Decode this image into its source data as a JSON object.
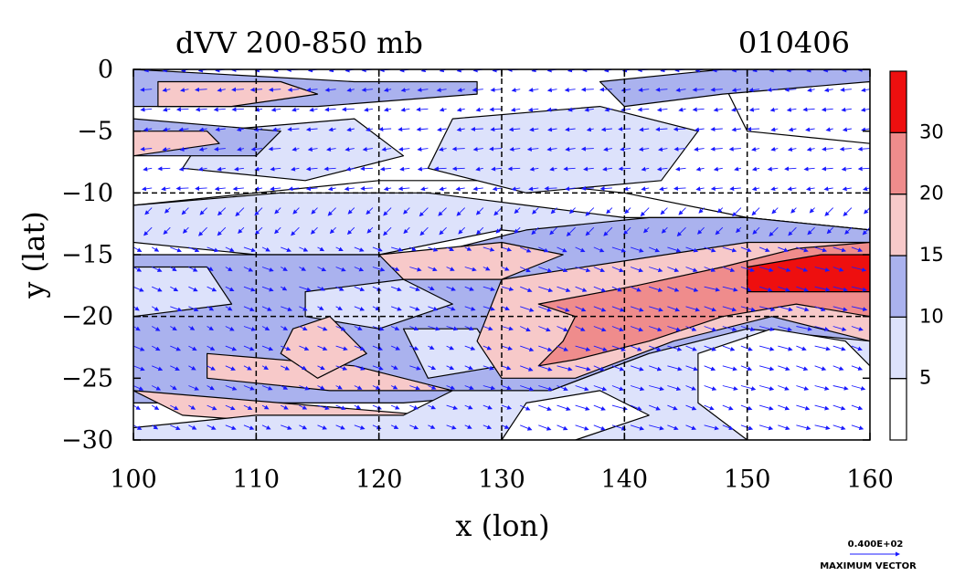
{
  "chart_data": {
    "type": "heatmap",
    "title": "dVV 200-850 mb",
    "date_label": "010406",
    "xlabel": "x (lon)",
    "ylabel": "y (lat)",
    "xlim": [
      100,
      160
    ],
    "ylim": [
      -30,
      0
    ],
    "x_ticks": [
      100,
      110,
      120,
      130,
      140,
      150,
      160
    ],
    "x_tick_labels": [
      "100",
      "110",
      "120",
      "130",
      "140",
      "150",
      "160"
    ],
    "y_ticks": [
      0,
      -5,
      -10,
      -15,
      -20,
      -25,
      -30
    ],
    "y_tick_labels": [
      "0",
      "−5",
      "−10",
      "−15",
      "−20",
      "−25",
      "−30"
    ],
    "grid_lons": [
      110,
      120,
      130,
      140,
      150
    ],
    "grid_lats": [
      -10,
      -20
    ],
    "colorbar": {
      "levels": [
        0,
        5,
        10,
        15,
        20,
        30,
        40
      ],
      "tick_values": [
        5,
        10,
        15,
        20,
        30
      ],
      "tick_labels": [
        "5",
        "10",
        "15",
        "20",
        "30"
      ],
      "colors": [
        "#ffffff",
        "#dde2fb",
        "#aab2ee",
        "#f7c9c9",
        "#ef8c8c",
        "#ee0f0f"
      ]
    },
    "regions": [
      {
        "level": 5,
        "name": "northern-band",
        "polygon": [
          [
            100,
            0
          ],
          [
            160,
            0
          ],
          [
            160,
            -13
          ],
          [
            150,
            -12
          ],
          [
            140,
            -10
          ],
          [
            130,
            -9
          ],
          [
            120,
            -9
          ],
          [
            110,
            -10
          ],
          [
            100,
            -11
          ]
        ]
      },
      {
        "level": 10,
        "name": "northern-blue-patch-1",
        "polygon": [
          [
            126,
            -4
          ],
          [
            138,
            -3
          ],
          [
            146,
            -5
          ],
          [
            143,
            -9
          ],
          [
            132,
            -10
          ],
          [
            124,
            -8
          ]
        ]
      },
      {
        "level": 10,
        "name": "northern-blue-patch-2",
        "polygon": [
          [
            106,
            -5
          ],
          [
            118,
            -4
          ],
          [
            122,
            -7
          ],
          [
            114,
            -9
          ],
          [
            104,
            -8
          ]
        ]
      },
      {
        "level": 10,
        "name": "central-blue-band",
        "polygon": [
          [
            100,
            -11
          ],
          [
            112,
            -10
          ],
          [
            124,
            -10
          ],
          [
            132,
            -11
          ],
          [
            140,
            -12
          ],
          [
            150,
            -12
          ],
          [
            160,
            -13
          ],
          [
            160,
            -14
          ],
          [
            148,
            -14
          ],
          [
            140,
            -14
          ],
          [
            130,
            -13
          ],
          [
            120,
            -15
          ],
          [
            110,
            -15
          ],
          [
            100,
            -14
          ]
        ]
      },
      {
        "level": 5,
        "name": "northeast-light-patch",
        "polygon": [
          [
            148,
            -1
          ],
          [
            160,
            -1
          ],
          [
            160,
            -6
          ],
          [
            150,
            -5
          ]
        ]
      },
      {
        "level": 15,
        "name": "north-pink-streak-1",
        "polygon": [
          [
            100,
            0
          ],
          [
            118,
            -1
          ],
          [
            128,
            -1
          ],
          [
            128,
            -2
          ],
          [
            115,
            -3
          ],
          [
            100,
            -3
          ]
        ]
      },
      {
        "level": 15,
        "name": "north-pink-streak-2",
        "polygon": [
          [
            100,
            -4
          ],
          [
            112,
            -5
          ],
          [
            110,
            -7
          ],
          [
            100,
            -7
          ]
        ]
      },
      {
        "level": 20,
        "name": "north-red-streak-1",
        "polygon": [
          [
            102,
            -1
          ],
          [
            112,
            -1
          ],
          [
            115,
            -2
          ],
          [
            108,
            -3
          ],
          [
            102,
            -3
          ]
        ]
      },
      {
        "level": 20,
        "name": "north-red-streak-2",
        "polygon": [
          [
            100,
            -5
          ],
          [
            106,
            -5
          ],
          [
            107,
            -6
          ],
          [
            100,
            -7
          ]
        ]
      },
      {
        "level": 15,
        "name": "northeast-pink",
        "polygon": [
          [
            138,
            -1
          ],
          [
            148,
            0
          ],
          [
            160,
            0
          ],
          [
            160,
            -1
          ],
          [
            148,
            -2
          ],
          [
            140,
            -3
          ]
        ]
      },
      {
        "level": 15,
        "name": "central-pink-band",
        "polygon": [
          [
            100,
            -15
          ],
          [
            112,
            -15
          ],
          [
            124,
            -15
          ],
          [
            132,
            -13
          ],
          [
            142,
            -12
          ],
          [
            150,
            -12
          ],
          [
            160,
            -13
          ],
          [
            160,
            -22
          ],
          [
            150,
            -22
          ],
          [
            142,
            -23
          ],
          [
            134,
            -26
          ],
          [
            122,
            -27
          ],
          [
            110,
            -27
          ],
          [
            100,
            -27
          ]
        ]
      },
      {
        "level": 10,
        "name": "central-blue-patch-1",
        "polygon": [
          [
            100,
            -16
          ],
          [
            106,
            -16
          ],
          [
            108,
            -19
          ],
          [
            100,
            -20
          ]
        ]
      },
      {
        "level": 10,
        "name": "central-blue-patch-2",
        "polygon": [
          [
            114,
            -18
          ],
          [
            122,
            -17
          ],
          [
            126,
            -19
          ],
          [
            120,
            -21
          ],
          [
            114,
            -20
          ]
        ]
      },
      {
        "level": 10,
        "name": "central-blue-patch-3",
        "polygon": [
          [
            122,
            -21
          ],
          [
            128,
            -21
          ],
          [
            130,
            -24
          ],
          [
            124,
            -25
          ]
        ]
      },
      {
        "level": 20,
        "name": "central-red-patch-1",
        "polygon": [
          [
            120,
            -15
          ],
          [
            130,
            -14
          ],
          [
            135,
            -15
          ],
          [
            130,
            -17
          ],
          [
            122,
            -17
          ]
        ]
      },
      {
        "level": 20,
        "name": "central-red-patch-2",
        "polygon": [
          [
            130,
            -17
          ],
          [
            150,
            -14
          ],
          [
            160,
            -14
          ],
          [
            160,
            -22
          ],
          [
            152,
            -20
          ],
          [
            144,
            -22
          ],
          [
            136,
            -25
          ],
          [
            130,
            -25
          ],
          [
            128,
            -22
          ]
        ]
      },
      {
        "level": 20,
        "name": "southwest-red-streak-1",
        "polygon": [
          [
            106,
            -23
          ],
          [
            118,
            -24
          ],
          [
            126,
            -26
          ],
          [
            116,
            -26
          ],
          [
            106,
            -25
          ]
        ]
      },
      {
        "level": 20,
        "name": "southwest-red-streak-2",
        "polygon": [
          [
            100,
            -26
          ],
          [
            112,
            -27
          ],
          [
            124,
            -28
          ],
          [
            118,
            -29
          ],
          [
            104,
            -28
          ]
        ]
      },
      {
        "level": 20,
        "name": "west-red-patch",
        "polygon": [
          [
            113,
            -21
          ],
          [
            116,
            -20
          ],
          [
            119,
            -23
          ],
          [
            115,
            -25
          ],
          [
            112,
            -23
          ]
        ]
      },
      {
        "level": 30,
        "name": "jet-core",
        "polygon": [
          [
            133,
            -19
          ],
          [
            141,
            -17.5
          ],
          [
            148,
            -16
          ],
          [
            154,
            -14.5
          ],
          [
            160,
            -14
          ],
          [
            160,
            -20
          ],
          [
            154,
            -19
          ],
          [
            148,
            -20
          ],
          [
            142,
            -22
          ],
          [
            136,
            -23.5
          ],
          [
            133,
            -24
          ],
          [
            135,
            -22
          ],
          [
            136,
            -20
          ]
        ]
      },
      {
        "level": 40,
        "name": "jet-core-max",
        "polygon": [
          [
            150,
            -16
          ],
          [
            156,
            -15
          ],
          [
            160,
            -15
          ],
          [
            160,
            -18
          ],
          [
            156,
            -18
          ],
          [
            150,
            -18
          ]
        ]
      },
      {
        "level": 10,
        "name": "south-blue-band",
        "polygon": [
          [
            126,
            -26
          ],
          [
            134,
            -26
          ],
          [
            142,
            -23
          ],
          [
            150,
            -21
          ],
          [
            160,
            -22
          ],
          [
            160,
            -30
          ],
          [
            100,
            -30
          ],
          [
            100,
            -29
          ],
          [
            110,
            -28
          ],
          [
            122,
            -28
          ]
        ]
      },
      {
        "level": 5,
        "name": "southeast-white-patch",
        "polygon": [
          [
            146,
            -23
          ],
          [
            152,
            -21
          ],
          [
            158,
            -22
          ],
          [
            160,
            -24
          ],
          [
            160,
            -30
          ],
          [
            150,
            -30
          ],
          [
            146,
            -27
          ]
        ]
      },
      {
        "level": 5,
        "name": "south-white-patch",
        "polygon": [
          [
            132,
            -27
          ],
          [
            138,
            -26
          ],
          [
            142,
            -28
          ],
          [
            136,
            -30
          ],
          [
            130,
            -30
          ]
        ]
      }
    ],
    "vector_field": {
      "grid": {
        "lon_start": 100,
        "lon_end": 160,
        "lon_step": 1.5,
        "lat_start": 0,
        "lat_end": -30,
        "lat_step": -1.6
      },
      "description": "wind-difference vectors, predominantly westward at low latitudes and south-eastward in the southern half"
    },
    "legend": {
      "vector_value": "0.400E+02",
      "vector_label": "MAXIMUM VECTOR"
    }
  }
}
